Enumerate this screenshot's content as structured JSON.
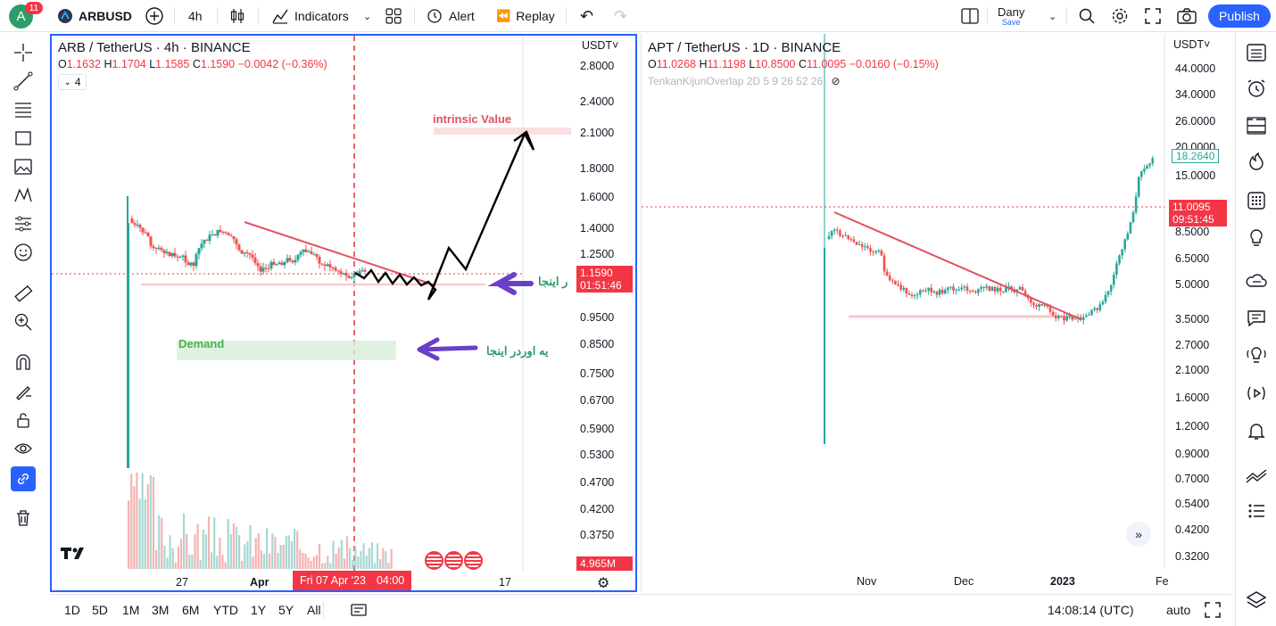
{
  "header": {
    "avatar_letter": "A",
    "notif_count": "11",
    "symbol": "ARBUSD",
    "interval": "4h",
    "indicators": "Indicators",
    "alert": "Alert",
    "replay": "Replay",
    "user_name": "Dany",
    "save_label": "Save",
    "publish": "Publish"
  },
  "left_chart": {
    "title": "ARB / TetherUS · 4h · BINANCE",
    "ohlc": {
      "o": "1.1632",
      "h": "1.1704",
      "l": "1.1585",
      "c": "1.1590",
      "chg": "−0.0042 (−0.36%)"
    },
    "collapse_count": "4",
    "currency": "USDT",
    "y_labels": [
      "2.8000",
      "2.4000",
      "2.1000",
      "1.8000",
      "1.6000",
      "1.4000",
      "1.2500",
      "0.9500",
      "0.8500",
      "0.7500",
      "0.6700",
      "0.5900",
      "0.5300",
      "0.4700",
      "0.4200",
      "0.3750"
    ],
    "price_tag": "1.1590",
    "countdown": "01:51:46",
    "volume_tag": "4.965M",
    "x_labels": [
      "27",
      "Apr",
      "17"
    ],
    "crosshair_date": "Fri 07 Apr '23",
    "crosshair_time": "04:00",
    "annotations": {
      "intrinsic": "intrinsic Value",
      "demand": "Demand",
      "arrow_text_1": "ر اینجا",
      "arrow_text_2": "یه اوردر اینجا"
    },
    "colors": {
      "up": "#26a69a",
      "down": "#ef5350",
      "trendline": "#e0515f",
      "arrow": "#6a3fc9"
    }
  },
  "right_chart": {
    "title": "APT / TetherUS · 1D · BINANCE",
    "ohlc": {
      "o": "11.0268",
      "h": "11.1198",
      "l": "10.8500",
      "c": "11.0095",
      "chg": "−0.0160 (−0.15%)"
    },
    "indicator": "TenkanKijunOverlap 2D 5 9 26 52 26",
    "currency": "USDT",
    "y_labels": [
      "44.0000",
      "34.0000",
      "26.0000",
      "20.0000",
      "15.0000",
      "8.5000",
      "6.5000",
      "5.0000",
      "3.5000",
      "2.7000",
      "2.1000",
      "1.6000",
      "1.2000",
      "0.9000",
      "0.7000",
      "0.5400",
      "0.4200",
      "0.3200"
    ],
    "line_tag": "18.2640",
    "price_tag": "11.0095",
    "countdown": "09:51:45",
    "x_labels": [
      "Nov",
      "Dec",
      "2023",
      "Fe"
    ]
  },
  "bottom": {
    "ranges": [
      "1D",
      "5D",
      "1M",
      "3M",
      "6M",
      "YTD",
      "1Y",
      "5Y",
      "All"
    ],
    "clock": "14:08:14 (UTC)",
    "auto": "auto"
  }
}
